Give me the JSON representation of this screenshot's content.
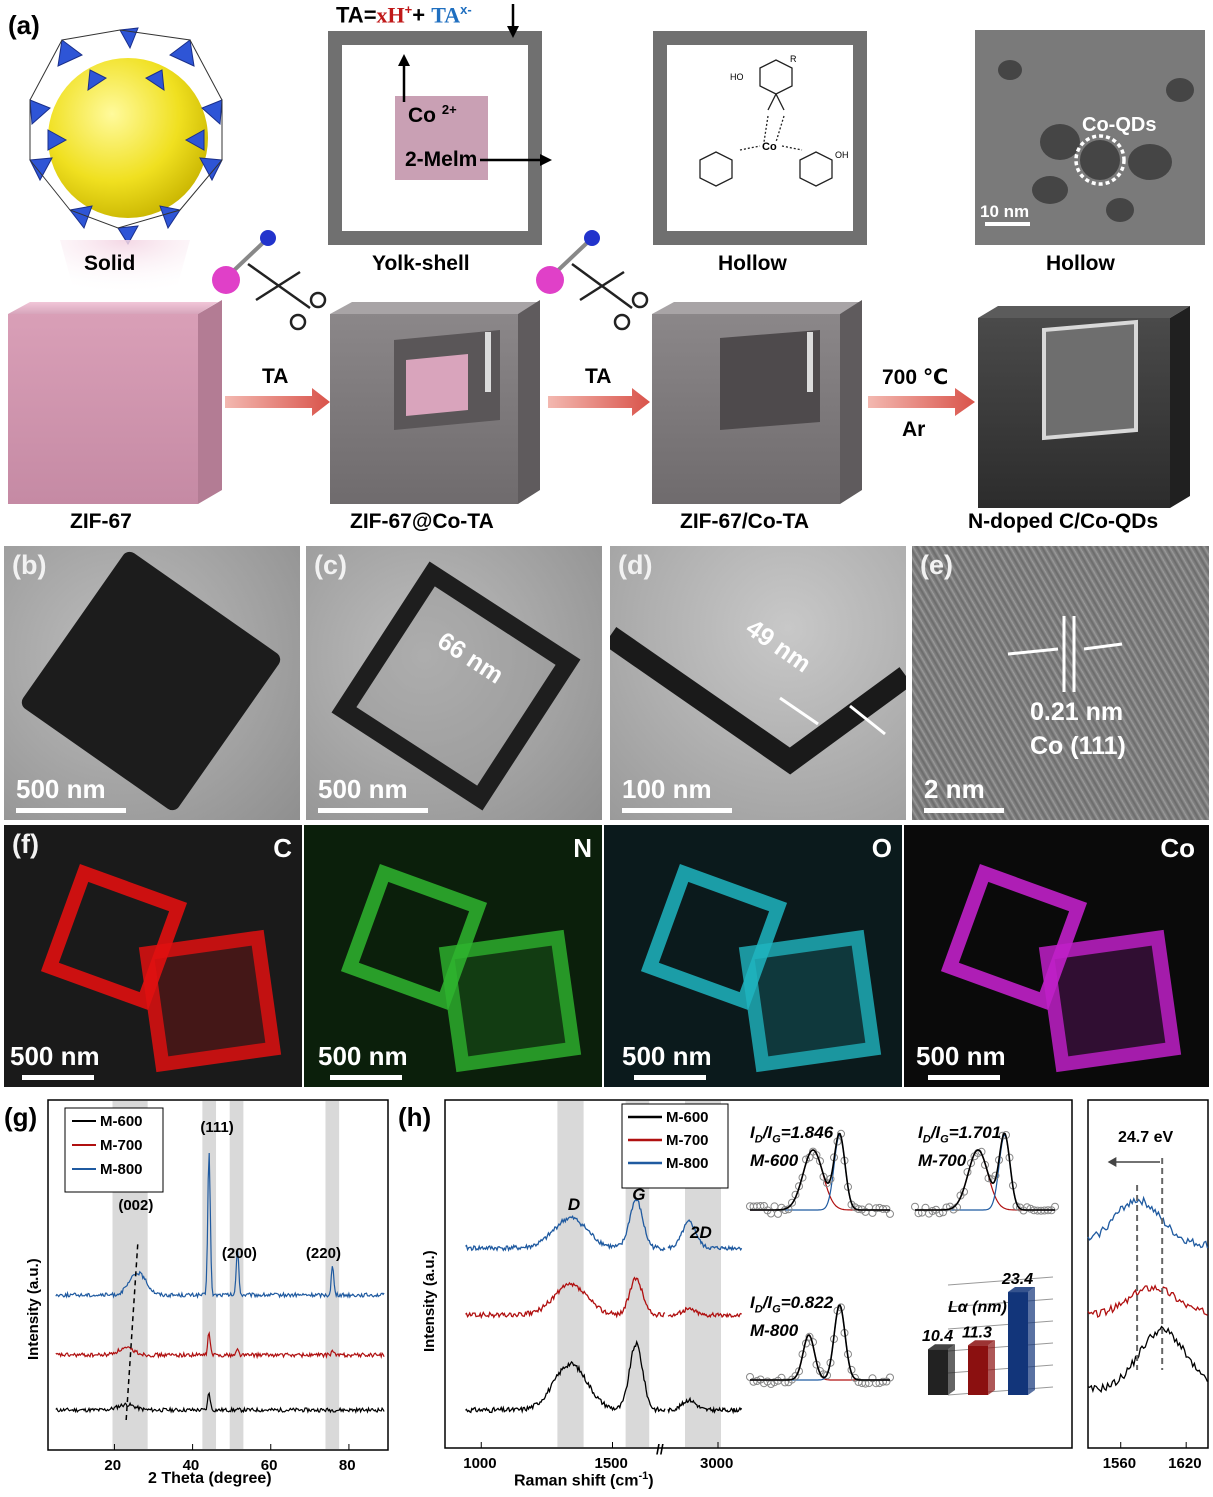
{
  "panel_a": {
    "label": "(a)",
    "eq_prefix": "TA=",
    "eq_h": "xH",
    "eq_h_sup": "+",
    "eq_plus": "+ ",
    "eq_ta": "TA",
    "eq_ta_sup": "x-",
    "co_label": "Co",
    "co_sup": "2+",
    "meim_label": "2-Melm",
    "stage_labels": [
      "Solid",
      "Yolk-shell",
      "Hollow",
      "Hollow"
    ],
    "arrow_labels": [
      "TA",
      "TA",
      "700 ℃",
      "Ar"
    ],
    "material_labels": [
      "ZIF-67",
      "ZIF-67@Co-TA",
      "ZIF-67/Co-TA",
      "N-doped C/Co-QDs"
    ],
    "qd_label": "Co-QDs",
    "qd_scale": "10 nm",
    "complex_atoms": [
      "Co",
      "HO",
      "OH",
      "O",
      "R"
    ]
  },
  "tem_panels": [
    {
      "label": "(b)",
      "scale": "500 nm"
    },
    {
      "label": "(c)",
      "scale": "500 nm",
      "note": "66 nm"
    },
    {
      "label": "(d)",
      "scale": "100 nm",
      "note": "49 nm"
    },
    {
      "label": "(e)",
      "scale": "2 nm",
      "note1": "0.21 nm",
      "note2": "Co (111)"
    }
  ],
  "map_panels": [
    {
      "label": "(f)",
      "element": "C",
      "scale": "500 nm",
      "color": "#e01010"
    },
    {
      "element": "N",
      "scale": "500 nm",
      "color": "#2fb52f"
    },
    {
      "element": "O",
      "scale": "500 nm",
      "color": "#1fb5c0"
    },
    {
      "element": "Co",
      "scale": "500 nm",
      "color": "#c020c8"
    }
  ],
  "chart_data": [
    {
      "type": "line",
      "panel": "(g)",
      "xlabel": "2 Theta (degree)",
      "ylabel": "Intensity (a.u.)",
      "xlim": [
        3,
        90
      ],
      "xticks": [
        20,
        40,
        60,
        80
      ],
      "series": [
        {
          "name": "M-600",
          "color": "#000000",
          "offset": 0,
          "peaks": [
            [
              23,
              0.25
            ],
            [
              44.2,
              0.8
            ]
          ]
        },
        {
          "name": "M-700",
          "color": "#b01010",
          "offset": 1,
          "peaks": [
            [
              23,
              0.3
            ],
            [
              44.2,
              1.0
            ],
            [
              51.5,
              0.25
            ],
            [
              75.8,
              0.2
            ]
          ]
        },
        {
          "name": "M-800",
          "color": "#1f5aa0",
          "offset": 2,
          "peaks": [
            [
              26,
              1.0
            ],
            [
              44.2,
              6.5
            ],
            [
              51.5,
              2.1
            ],
            [
              75.8,
              1.3
            ]
          ]
        }
      ],
      "annotations": [
        "(002)",
        "(111)",
        "(200)",
        "(220)"
      ],
      "highlight_bands": [
        [
          19.5,
          28.5
        ],
        [
          42.5,
          46
        ],
        [
          49.5,
          53
        ],
        [
          74,
          77.5
        ]
      ]
    },
    {
      "type": "line",
      "panel": "(h)",
      "xlabel": "Raman shift (cm",
      "xlabel_sup": "-1",
      "xlabel_close": ")",
      "ylabel": "Intensity (a.u.)",
      "xticks": [
        "1000",
        "1500",
        "3000"
      ],
      "break_mark": "//",
      "band_labels": [
        "D",
        "G",
        "2D"
      ],
      "series": [
        {
          "name": "M-600",
          "color": "#000000"
        },
        {
          "name": "M-700",
          "color": "#b01010"
        },
        {
          "name": "M-800",
          "color": "#1f5aa0"
        }
      ],
      "fits": [
        {
          "ratio_label": "I",
          "sub_d": "D",
          "slash": "/I",
          "sub_g": "G",
          "value": "=1.846",
          "sample": "M-600"
        },
        {
          "ratio_label": "I",
          "sub_d": "D",
          "slash": "/I",
          "sub_g": "G",
          "value": "=1.701",
          "sample": "M-700"
        },
        {
          "ratio_label": "I",
          "sub_d": "D",
          "slash": "/I",
          "sub_g": "G",
          "value": "=0.822",
          "sample": "M-800"
        }
      ],
      "la_chart": {
        "type": "bar",
        "title": "Lα (nm)",
        "categories": [
          "M-600",
          "M-700",
          "M-800"
        ],
        "values": [
          10.4,
          11.3,
          23.4
        ],
        "value_labels": [
          "10.4",
          "11.3",
          "23.4"
        ],
        "colors": [
          "#222222",
          "#8b1010",
          "#12357a"
        ]
      }
    },
    {
      "type": "line",
      "panel": "(h-inset)",
      "annotation": "24.7 eV",
      "xticks": [
        "1560",
        "1620"
      ],
      "xlim": [
        1530,
        1640
      ]
    }
  ]
}
